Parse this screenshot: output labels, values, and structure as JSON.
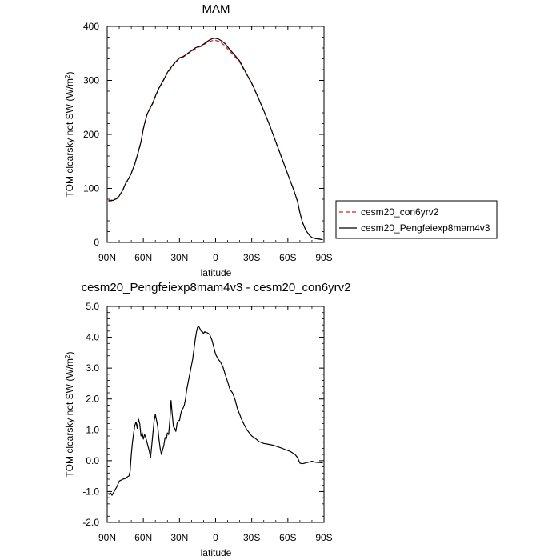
{
  "chart_data": [
    {
      "type": "line",
      "title": "MAM",
      "xlabel": "latitude",
      "ylabel": "TOM clearsky net SW (W/m",
      "ylabel_sup": "2",
      "ylabel_close": ")",
      "xlim": [
        90,
        -90
      ],
      "ylim": [
        0,
        400
      ],
      "xticks": [
        90,
        60,
        30,
        0,
        -30,
        -60,
        -90
      ],
      "xticklabels": [
        "90N",
        "60N",
        "30N",
        "0",
        "30S",
        "60S",
        "90S"
      ],
      "yticks": [
        0,
        100,
        200,
        300,
        400
      ],
      "yticklabels": [
        "0",
        "100",
        "200",
        "300",
        "400"
      ],
      "legend_position": "right",
      "series": [
        {
          "name": "cesm20_con6yrv2",
          "color": "#e31a1c",
          "dash": "dashed",
          "x": [
            89,
            87,
            85,
            82,
            80,
            77,
            75,
            72,
            70,
            67,
            65,
            62,
            60,
            57,
            55,
            52,
            50,
            47,
            45,
            42,
            40,
            37,
            35,
            32,
            30,
            27,
            25,
            22,
            20,
            17,
            15,
            12,
            10,
            7,
            5,
            2,
            0,
            -3,
            -5,
            -8,
            -10,
            -15,
            -20,
            -25,
            -30,
            -35,
            -40,
            -45,
            -50,
            -55,
            -60,
            -65,
            -68,
            -70,
            -72,
            -75,
            -78,
            -80,
            -83,
            -86,
            -89
          ],
          "y": [
            78,
            78,
            79,
            82,
            87,
            97,
            108,
            118,
            128,
            145,
            160,
            185,
            210,
            236,
            245,
            258,
            270,
            285,
            293,
            305,
            314,
            322,
            329,
            336,
            341,
            343,
            346,
            351,
            354,
            358,
            361,
            363,
            366,
            370,
            372,
            374,
            374,
            372,
            369,
            364,
            358,
            346,
            334,
            314,
            294,
            270,
            244,
            216,
            186,
            156,
            126,
            96,
            76,
            55,
            38,
            22,
            13,
            9,
            7,
            6,
            5
          ]
        },
        {
          "name": "cesm20_Pengfeiexp8mam4v3",
          "color": "#000000",
          "dash": "solid",
          "x": [
            89,
            87,
            85,
            82,
            80,
            77,
            75,
            72,
            70,
            67,
            65,
            62,
            60,
            57,
            55,
            52,
            50,
            47,
            45,
            42,
            40,
            37,
            35,
            32,
            30,
            27,
            25,
            22,
            20,
            17,
            15,
            12,
            10,
            7,
            5,
            2,
            0,
            -3,
            -5,
            -8,
            -10,
            -15,
            -20,
            -25,
            -30,
            -35,
            -40,
            -45,
            -50,
            -55,
            -60,
            -65,
            -68,
            -70,
            -72,
            -75,
            -78,
            -80,
            -83,
            -86,
            -89
          ],
          "y": [
            77,
            77,
            78,
            81,
            86,
            97,
            108,
            119,
            128,
            146,
            161,
            186,
            211,
            237,
            246,
            259,
            271,
            286,
            294,
            306,
            315,
            324,
            330,
            337,
            342,
            344,
            347,
            352,
            355,
            360,
            362,
            364,
            367,
            372,
            375,
            378,
            378,
            376,
            373,
            368,
            362,
            349,
            336,
            315,
            295,
            270,
            244,
            216,
            186,
            156,
            126,
            96,
            76,
            55,
            38,
            22,
            13,
            9,
            7,
            6,
            5
          ]
        }
      ]
    },
    {
      "type": "line",
      "title": "cesm20_Pengfeiexp8mam4v3 - cesm20_con6yrv2",
      "xlabel": "latitude",
      "ylabel": "TOM clearsky net SW (W/m",
      "ylabel_sup": "2",
      "ylabel_close": ")",
      "xlim": [
        90,
        -90
      ],
      "ylim": [
        -2.0,
        5.0
      ],
      "xticks": [
        90,
        60,
        30,
        0,
        -30,
        -60,
        -90
      ],
      "xticklabels": [
        "90N",
        "60N",
        "30N",
        "0",
        "30S",
        "60S",
        "90S"
      ],
      "yticks": [
        -2.0,
        -1.0,
        0.0,
        1.0,
        2.0,
        3.0,
        4.0,
        5.0
      ],
      "yticklabels": [
        "-2.0",
        "-1.0",
        "0.0",
        "1.0",
        "2.0",
        "3.0",
        "4.0",
        "5.0"
      ],
      "series": [
        {
          "name": "",
          "color": "#000000",
          "dash": "solid",
          "x": [
            89,
            88,
            87,
            86,
            85,
            82,
            80,
            77,
            75,
            74,
            73,
            72,
            71,
            70,
            69,
            68,
            67,
            66,
            65,
            64,
            63,
            62,
            61,
            60,
            59,
            58,
            57,
            56,
            55,
            54,
            53,
            52,
            51,
            50,
            48,
            47,
            46,
            45,
            44,
            43,
            42,
            41,
            40,
            39,
            38,
            37,
            36,
            35,
            34,
            33,
            32,
            31,
            30,
            29,
            28,
            27,
            26,
            25,
            24,
            23,
            22,
            21,
            20,
            19,
            18,
            17,
            16,
            15,
            14,
            13,
            12,
            11,
            10,
            9,
            8,
            7,
            6,
            5,
            4,
            3,
            2,
            1,
            0,
            -2,
            -4,
            -6,
            -8,
            -10,
            -12,
            -14,
            -16,
            -18,
            -20,
            -22,
            -24,
            -26,
            -28,
            -30,
            -33,
            -36,
            -40,
            -44,
            -48,
            -50,
            -54,
            -58,
            -62,
            -66,
            -68,
            -70,
            -72,
            -75,
            -78,
            -80,
            -83,
            -86,
            -89
          ],
          "y": [
            -1.05,
            -1.1,
            -1.05,
            -1.12,
            -1.05,
            -0.85,
            -0.66,
            -0.6,
            -0.58,
            -0.55,
            -0.52,
            -0.5,
            -0.35,
            0.2,
            0.6,
            0.9,
            1.15,
            1.25,
            1.05,
            1.35,
            1.2,
            0.8,
            0.9,
            0.7,
            0.85,
            0.75,
            0.6,
            0.45,
            0.3,
            0.1,
            0.5,
            0.9,
            1.3,
            1.5,
            1.1,
            0.7,
            0.4,
            0.2,
            0.35,
            0.5,
            0.75,
            0.7,
            0.9,
            0.85,
            1.3,
            1.95,
            1.5,
            1.1,
            1.05,
            0.95,
            1.2,
            1.3,
            1.3,
            1.5,
            1.65,
            1.7,
            1.8,
            2.0,
            2.3,
            2.5,
            2.7,
            2.9,
            3.1,
            3.3,
            3.6,
            3.9,
            4.15,
            4.32,
            4.35,
            4.28,
            4.2,
            4.18,
            4.12,
            4.18,
            4.15,
            4.15,
            4.12,
            4.1,
            4.0,
            3.9,
            3.75,
            3.6,
            3.45,
            3.3,
            3.2,
            3.05,
            2.8,
            2.55,
            2.3,
            2.2,
            2.0,
            1.7,
            1.5,
            1.3,
            1.15,
            1.0,
            0.9,
            0.8,
            0.72,
            0.62,
            0.56,
            0.53,
            0.5,
            0.47,
            0.42,
            0.36,
            0.3,
            0.2,
            0.1,
            -0.08,
            -0.1,
            -0.07,
            -0.04,
            -0.02,
            -0.05,
            -0.06,
            -0.07
          ]
        }
      ]
    }
  ]
}
